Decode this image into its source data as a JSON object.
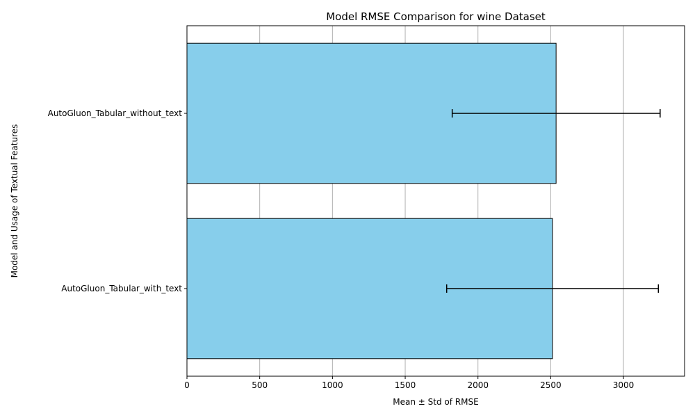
{
  "chart_data": {
    "type": "bar",
    "orientation": "horizontal",
    "title": "Model RMSE Comparison for wine Dataset",
    "xlabel": "Mean ± Std of RMSE",
    "ylabel": "Model and Usage of Textual Features",
    "categories": [
      "AutoGluon_Tabular_with_text",
      "AutoGluon_Tabular_without_text"
    ],
    "values": [
      2512,
      2537
    ],
    "error_low": [
      1785,
      1823
    ],
    "error_high": [
      3240,
      3252
    ],
    "xlim": [
      0,
      3420
    ],
    "xticks": [
      0,
      500,
      1000,
      1500,
      2000,
      2500,
      3000
    ],
    "grid": "x",
    "bar_color": "#87ceeb",
    "edge_color": "#000000",
    "grid_color": "#b0b0b0"
  }
}
